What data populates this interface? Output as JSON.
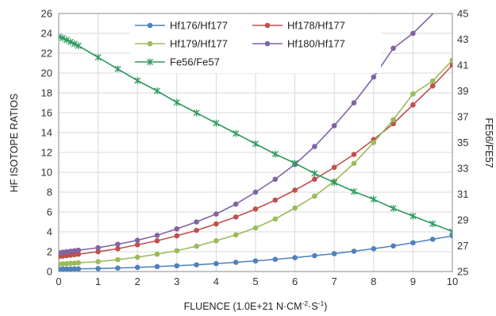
{
  "chart_data": {
    "type": "scatter",
    "xlabel": "FLUENCE (1.0E+21 N·CM",
    "xlabel_sup1": "-2",
    "xlabel_mid": "·S",
    "xlabel_sup2": "-1",
    "xlabel_end": ")",
    "ylabel": "HF ISOTOPE RATIOS",
    "y2label": "FE56/FE57",
    "xlim": [
      0,
      10
    ],
    "ylim": [
      0,
      26
    ],
    "y2lim": [
      25,
      45
    ],
    "grid": true,
    "legend_position": "top-center",
    "x_ticks": [
      "0",
      "1",
      "2",
      "3",
      "4",
      "5",
      "6",
      "7",
      "8",
      "9",
      "10"
    ],
    "y_ticks": [
      "0",
      "2",
      "4",
      "6",
      "8",
      "10",
      "12",
      "14",
      "16",
      "18",
      "20",
      "22",
      "24",
      "26"
    ],
    "y2_ticks": [
      "25",
      "27",
      "29",
      "31",
      "33",
      "35",
      "37",
      "39",
      "41",
      "43",
      "45"
    ],
    "series": [
      {
        "name": "Hf176/Hf177",
        "color": "#4f81bd",
        "marker": "circle",
        "axis": "left",
        "x": [
          0,
          0.1,
          0.2,
          0.3,
          0.4,
          0.5,
          1.0,
          1.5,
          2.0,
          2.5,
          3.0,
          3.5,
          4.0,
          4.5,
          5.0,
          5.5,
          6.0,
          6.5,
          7.0,
          7.5,
          8.0,
          8.5,
          9.0,
          9.5,
          10.0
        ],
        "y": [
          0.25,
          0.25,
          0.26,
          0.26,
          0.27,
          0.27,
          0.3,
          0.35,
          0.42,
          0.5,
          0.58,
          0.68,
          0.8,
          0.93,
          1.07,
          1.23,
          1.4,
          1.6,
          1.8,
          2.05,
          2.3,
          2.58,
          2.9,
          3.25,
          3.6
        ]
      },
      {
        "name": "Hf178/Hf177",
        "color": "#c0504d",
        "marker": "circle",
        "axis": "left",
        "x": [
          0,
          0.1,
          0.2,
          0.3,
          0.4,
          0.5,
          1.0,
          1.5,
          2.0,
          2.5,
          3.0,
          3.5,
          4.0,
          4.5,
          5.0,
          5.5,
          6.0,
          6.5,
          7.0,
          7.5,
          8.0,
          8.5,
          9.0,
          9.5,
          10.0
        ],
        "y": [
          1.5,
          1.55,
          1.6,
          1.65,
          1.7,
          1.75,
          2.0,
          2.3,
          2.7,
          3.1,
          3.6,
          4.15,
          4.8,
          5.5,
          6.3,
          7.2,
          8.2,
          9.3,
          10.5,
          11.8,
          13.3,
          14.9,
          16.8,
          18.7,
          20.8
        ]
      },
      {
        "name": "Hf179/Hf177",
        "color": "#9bbb59",
        "marker": "circle",
        "axis": "left",
        "x": [
          0,
          0.1,
          0.2,
          0.3,
          0.4,
          0.5,
          1.0,
          1.5,
          2.0,
          2.5,
          3.0,
          3.5,
          4.0,
          4.5,
          5.0,
          5.5,
          6.0,
          6.5,
          7.0,
          7.5,
          8.0,
          8.5,
          9.0,
          9.5,
          10.0
        ],
        "y": [
          0.75,
          0.77,
          0.8,
          0.83,
          0.85,
          0.88,
          1.0,
          1.2,
          1.45,
          1.75,
          2.1,
          2.55,
          3.1,
          3.7,
          4.4,
          5.3,
          6.4,
          7.6,
          9.1,
          10.9,
          13.0,
          15.3,
          17.9,
          19.2,
          21.3
        ]
      },
      {
        "name": "Hf180/Hf177",
        "color": "#8064a2",
        "marker": "circle",
        "axis": "left",
        "x": [
          0,
          0.1,
          0.2,
          0.3,
          0.4,
          0.5,
          1.0,
          1.5,
          2.0,
          2.5,
          3.0,
          3.5,
          4.0,
          4.5,
          5.0,
          5.5,
          6.0,
          6.5,
          7.0,
          7.5,
          8.0,
          8.5,
          9.0
        ],
        "y": [
          1.9,
          1.95,
          2.0,
          2.05,
          2.1,
          2.15,
          2.4,
          2.75,
          3.15,
          3.65,
          4.3,
          5.0,
          5.8,
          6.8,
          8.0,
          9.3,
          10.8,
          12.6,
          14.7,
          17.0,
          19.6,
          22.5,
          24.0
        ]
      },
      {
        "name": "Fe56/Fe57",
        "color": "#4bacc6",
        "line_color": "#2e9a5f",
        "marker": "asterisk",
        "axis": "right",
        "x": [
          0,
          0.1,
          0.2,
          0.3,
          0.4,
          0.5,
          1.0,
          1.5,
          2.0,
          2.5,
          3.0,
          3.5,
          4.0,
          4.5,
          5.0,
          5.5,
          6.0,
          6.5,
          7.0,
          7.5,
          8.0,
          8.5,
          9.0,
          9.5,
          10.0
        ],
        "y": [
          43.2,
          43.1,
          42.95,
          42.8,
          42.65,
          42.5,
          41.6,
          40.7,
          39.8,
          39.0,
          38.1,
          37.3,
          36.5,
          35.7,
          34.9,
          34.1,
          33.4,
          32.6,
          31.9,
          31.2,
          30.6,
          29.9,
          29.3,
          28.7,
          28.1
        ]
      }
    ]
  }
}
